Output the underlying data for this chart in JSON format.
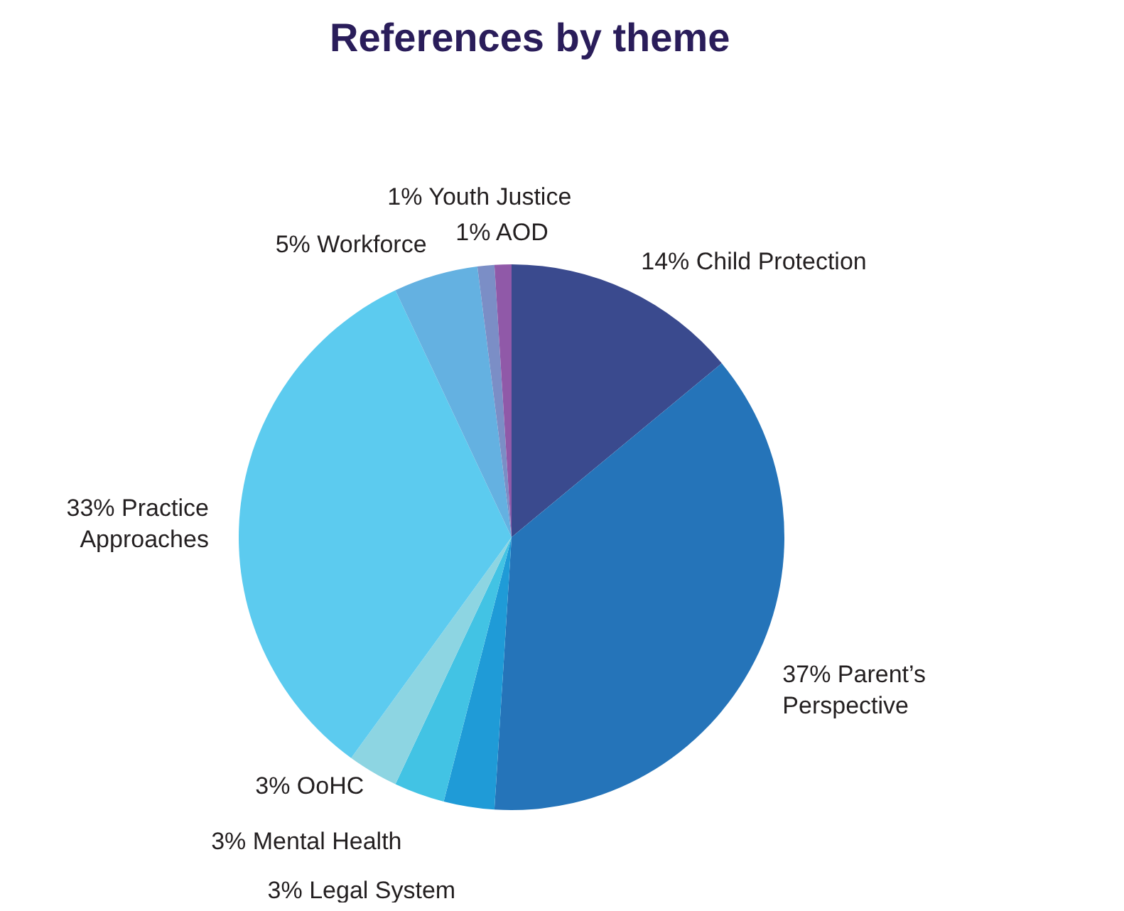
{
  "chart_data": {
    "type": "pie",
    "title": "References by theme",
    "categories": [
      "Child Protection",
      "Parent’s Perspective",
      "Legal System",
      "Mental Health",
      "OoHC",
      "Practice Approaches",
      "Workforce",
      "Youth Justice",
      "AOD"
    ],
    "values": [
      14,
      37,
      3,
      3,
      3,
      33,
      5,
      1,
      1
    ],
    "value_labels": [
      "14%",
      "37%",
      "3%",
      "3%",
      "3%",
      "33%",
      "5%",
      "1%",
      "1%"
    ],
    "colors": [
      "#3a4a8e",
      "#2574b9",
      "#1f9bd7",
      "#42c3e4",
      "#8dd5e2",
      "#5ccbef",
      "#64b1e1",
      "#7b8ec6",
      "#9059a8"
    ]
  }
}
